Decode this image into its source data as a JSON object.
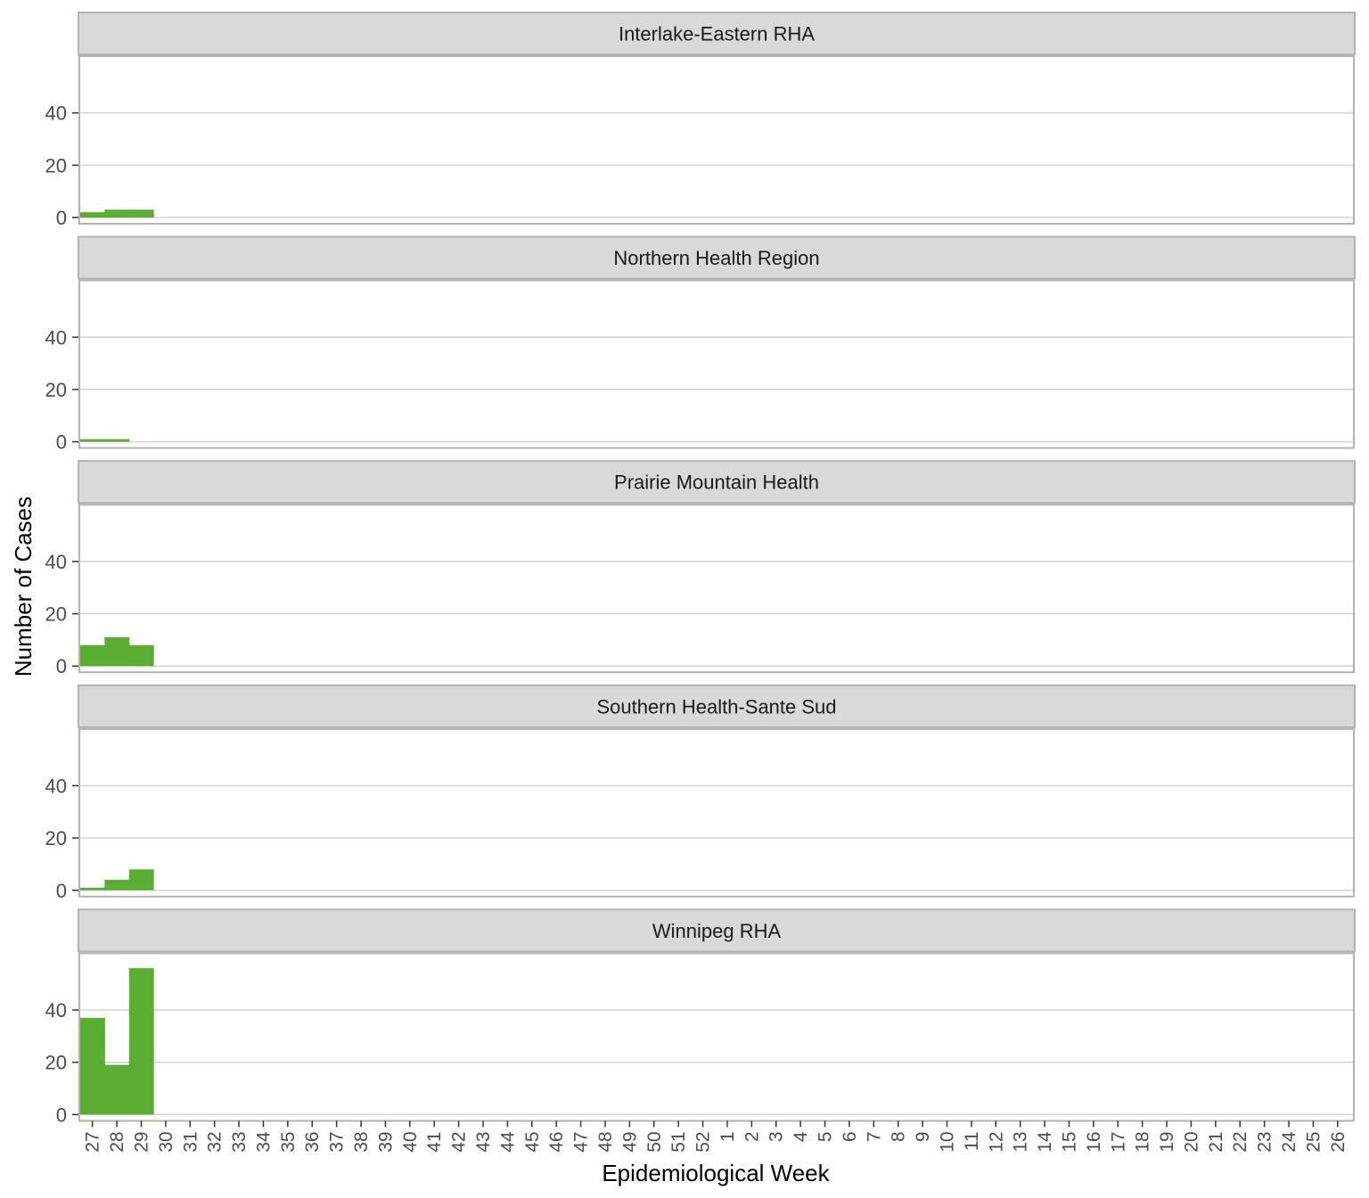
{
  "chart_data": {
    "type": "bar",
    "xlabel": "Epidemiological Week",
    "ylabel": "Number of Cases",
    "ylim": [
      0,
      60
    ],
    "yticks": [
      0,
      20,
      40
    ],
    "grid": true,
    "bar_color": "#5aaf32",
    "strip_color": "#d9d9d9",
    "categories": [
      "27",
      "28",
      "29",
      "30",
      "31",
      "32",
      "33",
      "34",
      "35",
      "36",
      "37",
      "38",
      "39",
      "40",
      "41",
      "42",
      "43",
      "44",
      "45",
      "46",
      "47",
      "48",
      "49",
      "50",
      "51",
      "52",
      "1",
      "2",
      "3",
      "4",
      "5",
      "6",
      "7",
      "8",
      "9",
      "10",
      "11",
      "12",
      "13",
      "14",
      "15",
      "16",
      "17",
      "18",
      "19",
      "20",
      "21",
      "22",
      "23",
      "24",
      "25",
      "26"
    ],
    "panels": [
      {
        "name": "Interlake-Eastern RHA",
        "values": [
          2,
          3,
          3
        ]
      },
      {
        "name": "Northern Health Region",
        "values": [
          1,
          1,
          0
        ]
      },
      {
        "name": "Prairie Mountain Health",
        "values": [
          8,
          11,
          8
        ]
      },
      {
        "name": "Southern Health-Sante Sud",
        "values": [
          1,
          4,
          8
        ]
      },
      {
        "name": "Winnipeg RHA",
        "values": [
          37,
          19,
          56
        ]
      }
    ]
  }
}
